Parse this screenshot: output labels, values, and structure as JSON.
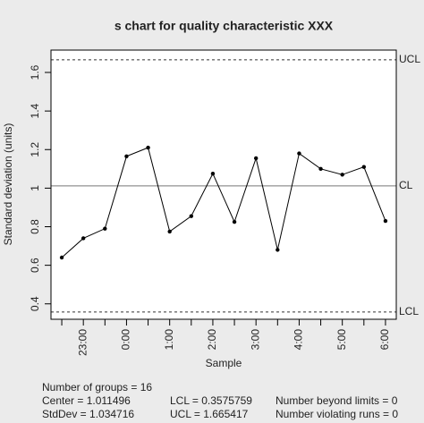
{
  "chart_data": {
    "type": "line",
    "title": "s chart for quality characteristic XXX",
    "x_label": "Sample",
    "y_label": "Standard deviation (units)",
    "categories": [
      null,
      "23:00",
      null,
      "0:00",
      null,
      "1:00",
      null,
      "2:00",
      null,
      "3:00",
      null,
      "4:00",
      null,
      "5:00",
      null,
      "6:00"
    ],
    "series": [
      {
        "name": "s",
        "color": "#000000",
        "values": [
          0.64,
          0.74,
          0.79,
          1.165,
          1.21,
          0.775,
          0.855,
          1.075,
          0.825,
          1.155,
          0.68,
          1.18,
          1.1,
          1.07,
          1.11,
          0.83
        ]
      }
    ],
    "ylim": [
      0.32,
      1.716
    ],
    "yticks": [
      0.4,
      0.6,
      0.8,
      1.0,
      1.2,
      1.4,
      1.6
    ],
    "control_lines": [
      {
        "label": "UCL",
        "value": 1.665417,
        "style": "dashed"
      },
      {
        "label": "CL",
        "value": 1.011496,
        "style": "solid"
      },
      {
        "label": "LCL",
        "value": 0.3575759,
        "style": "dashed"
      }
    ],
    "stats": {
      "groups": "Number of groups = 16",
      "center": "Center = 1.011496",
      "stddev": "StdDev = 1.034716",
      "lcl": "LCL = 0.3575759",
      "ucl": "UCL = 1.665417",
      "beyond": "Number beyond limits = 0",
      "runs": "Number violating runs = 0"
    }
  }
}
